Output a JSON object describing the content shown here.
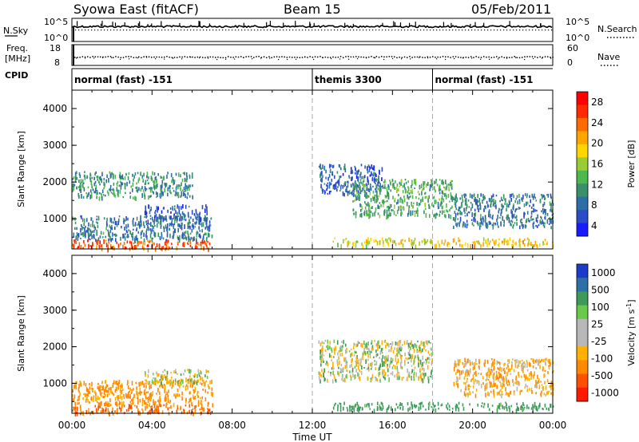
{
  "header": {
    "title": "Syowa East (fitACF)",
    "beam": "Beam 15",
    "date": "05/Feb/2011"
  },
  "nsky_panel": {
    "left_label": "N.Sky",
    "left_ticks": [
      "10^5",
      "10^0"
    ],
    "right_ticks": [
      "10^5",
      "10^0"
    ],
    "right_label": "N.Search",
    "right_label_style": "dotted underline"
  },
  "freq_panel": {
    "label_line1": "Freq.",
    "label_line2": "[MHz]",
    "left_ticks": [
      18,
      8
    ],
    "left_range": [
      8,
      18
    ],
    "right_ticks": [
      60,
      0
    ],
    "right_range": [
      0,
      60
    ],
    "right_label": "Nave",
    "right_label_style": "dotted underline",
    "freq_mhz_typical": 12.3,
    "nave_typical": 30
  },
  "cpid_panel": {
    "label": "CPID",
    "segments": [
      {
        "text": "normal (fast) -151",
        "start_h": 0
      },
      {
        "text": "themis 3300",
        "start_h": 12
      },
      {
        "text": "normal (fast) -151",
        "start_h": 18
      }
    ]
  },
  "x_axis": {
    "label": "Time UT",
    "range_h": [
      0,
      24
    ],
    "ticks": [
      "00:00",
      "04:00",
      "08:00",
      "12:00",
      "16:00",
      "20:00",
      "00:00"
    ],
    "tick_hours": [
      0,
      4,
      8,
      12,
      16,
      20,
      24
    ],
    "dashed_markers_h": [
      12,
      18
    ]
  },
  "chart_data": [
    {
      "type": "heatmap",
      "name_panel": "power",
      "ylabel": "Slant Range [km]",
      "ylim": [
        180,
        4500
      ],
      "yticks": [
        "4000",
        "3000",
        "2000",
        "1000"
      ],
      "ytick_values": [
        4000,
        3000,
        2000,
        1000
      ],
      "colorbar": {
        "label": "Power [dB]",
        "ticks": [
          "28",
          "24",
          "20",
          "16",
          "12",
          "8",
          "4"
        ],
        "tick_values": [
          28,
          24,
          20,
          16,
          12,
          8,
          4
        ],
        "range": [
          0,
          32
        ],
        "colors": [
          "#1a1aff",
          "#2a4cc8",
          "#2e6ea8",
          "#3b8f6a",
          "#4db84d",
          "#9ccc33",
          "#ffd700",
          "#ffa500",
          "#ff6a00",
          "#ff2a00",
          "#ff0000"
        ]
      },
      "regions": [
        {
          "t": [
            0,
            7
          ],
          "r": [
            200,
            450
          ],
          "value": 26
        },
        {
          "t": [
            0,
            7
          ],
          "r": [
            450,
            1100
          ],
          "value": 8
        },
        {
          "t": [
            3.6,
            6.8
          ],
          "r": [
            1000,
            1400
          ],
          "value": 6
        },
        {
          "t": [
            0,
            6
          ],
          "r": [
            1600,
            2300
          ],
          "value": 10
        },
        {
          "t": [
            12.3,
            15.5
          ],
          "r": [
            1700,
            2500
          ],
          "value": 6
        },
        {
          "t": [
            14,
            19
          ],
          "r": [
            1100,
            2100
          ],
          "value": 12
        },
        {
          "t": [
            13,
            18
          ],
          "r": [
            300,
            500
          ],
          "value": 18
        },
        {
          "t": [
            18,
            24
          ],
          "r": [
            300,
            500
          ],
          "value": 20
        },
        {
          "t": [
            19,
            24
          ],
          "r": [
            800,
            1700
          ],
          "value": 8
        }
      ]
    },
    {
      "type": "heatmap",
      "name_panel": "velocity",
      "ylabel": "Slant Range [km]",
      "ylim": [
        180,
        4500
      ],
      "yticks": [
        "4000",
        "3000",
        "2000",
        "1000"
      ],
      "ytick_values": [
        4000,
        3000,
        2000,
        1000
      ],
      "colorbar": {
        "label": "Velocity [m s",
        "label_superscript": "-1",
        "label_close": "]",
        "ticks": [
          "1000",
          "500",
          "100",
          "25",
          "-25",
          "-100",
          "-500",
          "-1000"
        ],
        "tick_values": [
          1000,
          500,
          100,
          25,
          -25,
          -100,
          -500,
          -1000
        ],
        "colors": [
          "#1a3cc8",
          "#2f6fa8",
          "#3d9a5a",
          "#6ac84a",
          "#b8b8b8",
          "#b8b8b8",
          "#ffb000",
          "#ff8a00",
          "#ff5000",
          "#ff1a00"
        ]
      },
      "regions": [
        {
          "t": [
            0,
            7
          ],
          "r": [
            200,
            450
          ],
          "value": -300
        },
        {
          "t": [
            0,
            7
          ],
          "r": [
            450,
            1100
          ],
          "value": -150
        },
        {
          "t": [
            3.6,
            6.8
          ],
          "r": [
            1000,
            1400
          ],
          "value": 0
        },
        {
          "t": [
            12.3,
            18
          ],
          "r": [
            1100,
            2200
          ],
          "value": 0
        },
        {
          "t": [
            13,
            24
          ],
          "r": [
            300,
            500
          ],
          "value": 150
        },
        {
          "t": [
            19,
            24
          ],
          "r": [
            700,
            1700
          ],
          "value": -80
        }
      ]
    }
  ]
}
